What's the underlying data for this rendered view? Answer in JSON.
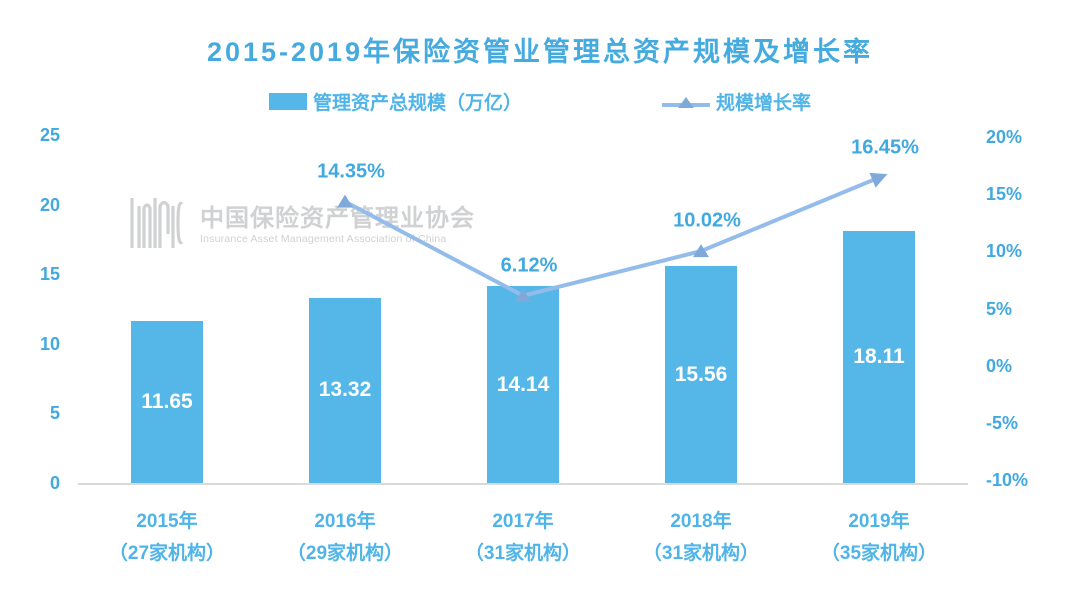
{
  "title": "2015-2019年保险资管业管理总资产规模及增长率",
  "legend": {
    "bar_label": "管理资产总规模（万亿）",
    "line_label": "规模增长率"
  },
  "watermark": {
    "logo": "IAMAC",
    "cn": "中国保险资产管理业协会",
    "en": "Insurance Asset Management Association of China"
  },
  "colors": {
    "title": "#45ABDF",
    "axis_label": "#41A9E0",
    "x_label": "#4FB4E8",
    "bar": "#55B7E8",
    "bar_value": "#FFFFFF",
    "line": "#93BCEA",
    "marker": "#7FA9DB",
    "line_label": "#41A9E0",
    "baseline": "#D9D9D9",
    "watermark": "#C7C9CB"
  },
  "chart_data": {
    "type": "combo",
    "categories": [
      "2015年",
      "2016年",
      "2017年",
      "2018年",
      "2019年"
    ],
    "category_sublabels": [
      "（27家机构）",
      "（29家机构）",
      "（31家机构）",
      "（31家机构）",
      "（35家机构）"
    ],
    "series": [
      {
        "name": "管理资产总规模（万亿）",
        "type": "bar",
        "axis": "left",
        "values": [
          11.65,
          13.32,
          14.14,
          15.56,
          18.11
        ],
        "labels": [
          "11.65",
          "13.32",
          "14.14",
          "15.56",
          "18.11"
        ]
      },
      {
        "name": "规模增长率",
        "type": "line",
        "axis": "right",
        "values": [
          null,
          14.35,
          6.12,
          10.02,
          16.45
        ],
        "labels": [
          null,
          "14.35%",
          "6.12%",
          "10.02%",
          "16.45%"
        ]
      }
    ],
    "left_axis": {
      "min": 0,
      "max": 25,
      "ticks": [
        "25",
        "20",
        "15",
        "10",
        "5",
        "0"
      ],
      "tick_values": [
        25,
        20,
        15,
        10,
        5,
        0
      ]
    },
    "right_axis": {
      "min": -10,
      "max": 20,
      "ticks": [
        "20%",
        "15%",
        "10%",
        "5%",
        "0%",
        "-5%",
        "-10%"
      ],
      "tick_values": [
        20,
        15,
        10,
        5,
        0,
        -5,
        -10
      ]
    },
    "grid": false,
    "legend_position": "top"
  }
}
